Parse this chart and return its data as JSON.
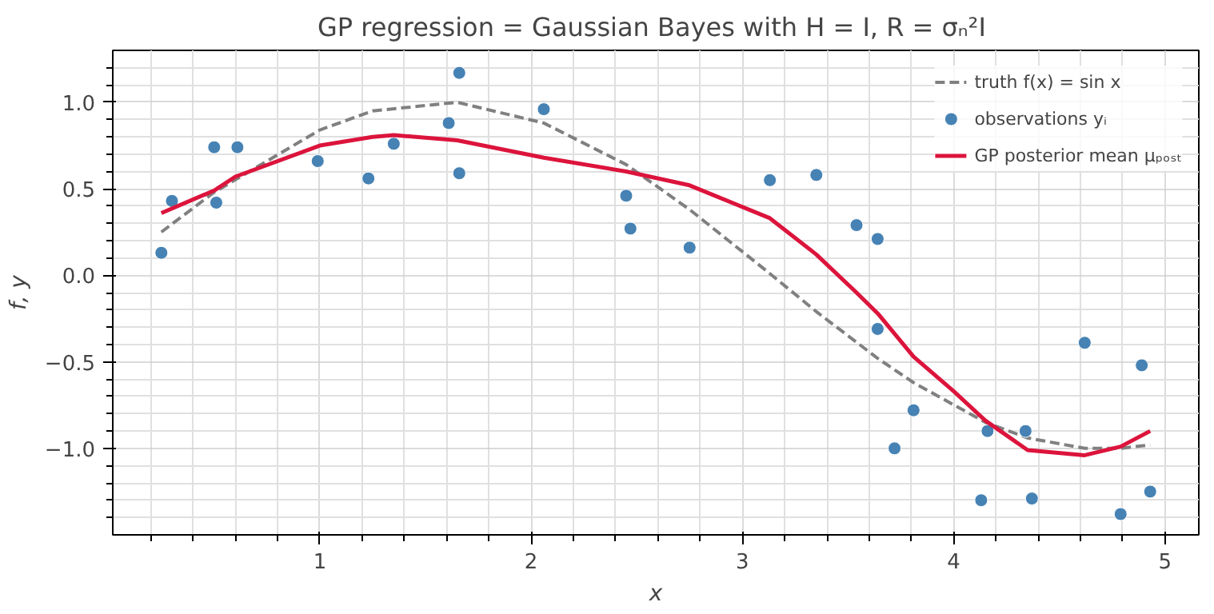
{
  "chart_data": {
    "type": "line",
    "title": "GP regression = Gaussian Bayes with H = I,  R = σₙ²I",
    "xlabel": "x",
    "ylabel": "f, y",
    "xlim": [
      0.02,
      5.16
    ],
    "ylim": [
      -1.5,
      1.3
    ],
    "xticks": [
      {
        "value": 0.2,
        "label": null
      },
      {
        "value": 0.4,
        "label": null
      },
      {
        "value": 0.6,
        "label": null
      },
      {
        "value": 0.8,
        "label": null
      },
      1,
      {
        "value": 1.2,
        "label": null
      },
      {
        "value": 1.4,
        "label": null
      },
      {
        "value": 1.6,
        "label": null
      },
      {
        "value": 1.8,
        "label": null
      },
      2,
      {
        "value": 2.2,
        "label": null
      },
      {
        "value": 2.4,
        "label": null
      },
      {
        "value": 2.6,
        "label": null
      },
      {
        "value": 2.8,
        "label": null
      },
      3,
      {
        "value": 3.2,
        "label": null
      },
      {
        "value": 3.4,
        "label": null
      },
      {
        "value": 3.6,
        "label": null
      },
      {
        "value": 3.8,
        "label": null
      },
      4,
      {
        "value": 4.2,
        "label": null
      },
      {
        "value": 4.4,
        "label": null
      },
      {
        "value": 4.6,
        "label": null
      },
      {
        "value": 4.8,
        "label": null
      },
      5
    ],
    "yticks": [
      {
        "value": -1.4,
        "label": null
      },
      {
        "value": -1.3,
        "label": null
      },
      {
        "value": -1.2,
        "label": null
      },
      {
        "value": -1.1,
        "label": null
      },
      {
        "value": -1.0,
        "label": "−1.0"
      },
      {
        "value": -0.9,
        "label": null
      },
      {
        "value": -0.8,
        "label": null
      },
      {
        "value": -0.7,
        "label": null
      },
      {
        "value": -0.6,
        "label": null
      },
      {
        "value": -0.5,
        "label": "−0.5"
      },
      {
        "value": -0.4,
        "label": null
      },
      {
        "value": -0.3,
        "label": null
      },
      {
        "value": -0.2,
        "label": null
      },
      {
        "value": -0.1,
        "label": null
      },
      {
        "value": 0,
        "label": "0.0"
      },
      {
        "value": 0.1,
        "label": null
      },
      {
        "value": 0.2,
        "label": null
      },
      {
        "value": 0.3,
        "label": null
      },
      {
        "value": 0.4,
        "label": null
      },
      {
        "value": 0.5,
        "label": "0.5"
      },
      {
        "value": 0.6,
        "label": null
      },
      {
        "value": 0.7,
        "label": null
      },
      {
        "value": 0.8,
        "label": null
      },
      {
        "value": 0.9,
        "label": null
      },
      {
        "value": 1.0,
        "label": "1.0"
      },
      {
        "value": 1.1,
        "label": null
      },
      {
        "value": 1.2,
        "label": null
      }
    ],
    "grid": true,
    "legend": "top right",
    "series": [
      {
        "name": "truth f(x) = sin x",
        "color": "#808080",
        "line_style": "dashed",
        "marker": "none",
        "x": [
          0.25,
          0.5,
          1.0,
          1.25,
          1.65,
          2.06,
          2.45,
          2.75,
          3.13,
          3.35,
          3.64,
          3.81,
          4.15,
          4.35,
          4.62,
          4.79,
          4.93
        ],
        "values": [
          0.25,
          0.48,
          0.84,
          0.95,
          1.0,
          0.88,
          0.64,
          0.38,
          0.01,
          -0.21,
          -0.48,
          -0.62,
          -0.85,
          -0.94,
          -1.0,
          -1.0,
          -0.98
        ]
      },
      {
        "name": "observations yᵢ",
        "type": "scatter",
        "color": "#4682b4",
        "marker": "circle",
        "x": [
          0.25,
          0.3,
          0.5,
          0.51,
          0.61,
          0.99,
          1.23,
          1.35,
          1.61,
          1.66,
          1.66,
          2.06,
          2.45,
          2.47,
          2.75,
          3.13,
          3.35,
          3.54,
          3.64,
          3.64,
          3.72,
          3.81,
          4.13,
          4.16,
          4.34,
          4.37,
          4.62,
          4.79,
          4.89,
          4.93
        ],
        "values": [
          0.13,
          0.43,
          0.74,
          0.42,
          0.74,
          0.66,
          0.56,
          0.76,
          0.88,
          1.17,
          0.59,
          0.96,
          0.46,
          0.27,
          0.16,
          0.55,
          0.58,
          0.29,
          0.21,
          -0.31,
          -1.0,
          -0.78,
          -1.3,
          -0.9,
          -0.9,
          -1.29,
          -0.39,
          -1.38,
          -0.52,
          -1.25
        ]
      },
      {
        "name": "GP posterior mean μₚₒₛₜ",
        "color": "#dc143c",
        "line_style": "solid",
        "marker": "none",
        "x": [
          0.25,
          0.5,
          0.6,
          1.0,
          1.25,
          1.35,
          1.65,
          2.06,
          2.45,
          2.75,
          3.13,
          3.35,
          3.54,
          3.64,
          3.81,
          4.0,
          4.15,
          4.35,
          4.62,
          4.79,
          4.93
        ],
        "values": [
          0.36,
          0.49,
          0.57,
          0.75,
          0.8,
          0.81,
          0.78,
          0.68,
          0.6,
          0.52,
          0.33,
          0.12,
          -0.1,
          -0.22,
          -0.47,
          -0.67,
          -0.84,
          -1.01,
          -1.04,
          -0.99,
          -0.9
        ]
      }
    ]
  }
}
